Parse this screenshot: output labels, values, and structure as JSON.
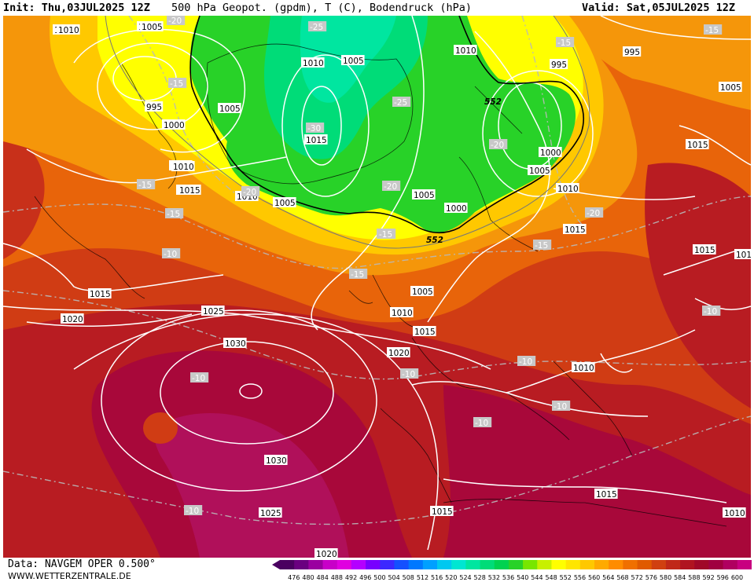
{
  "header": {
    "init_text": "Init: Thu,03JUL2025 12Z",
    "title_text": "500 hPa Geopot. (gpdm), T (C), Bodendruck (hPa)",
    "valid_text": "Valid: Sat,05JUL2025 12Z"
  },
  "footer": {
    "data_text": "Data: NAVGEM OPER 0.500°",
    "site_text": "WWW.WETTERZENTRALE.DE"
  },
  "colorbar": {
    "ticks": [
      "476",
      "480",
      "484",
      "488",
      "492",
      "496",
      "500",
      "504",
      "508",
      "512",
      "516",
      "520",
      "524",
      "528",
      "532",
      "536",
      "540",
      "544",
      "548",
      "552",
      "556",
      "560",
      "564",
      "568",
      "572",
      "576",
      "580",
      "584",
      "588",
      "592",
      "596",
      "600"
    ],
    "colors": [
      "#4a0060",
      "#6a0080",
      "#9a00a0",
      "#c800c8",
      "#e000e0",
      "#b400ff",
      "#7800ff",
      "#3c28ff",
      "#1450ff",
      "#0078ff",
      "#00a0ff",
      "#00c8f0",
      "#00e6d2",
      "#00e6a0",
      "#00dc78",
      "#00d250",
      "#28d228",
      "#78e600",
      "#c8f000",
      "#ffff00",
      "#ffe600",
      "#ffc800",
      "#ffaa00",
      "#ff8c00",
      "#f07000",
      "#e05a00",
      "#d04010",
      "#c02818",
      "#b01420",
      "#a00828",
      "#a00040",
      "#b00060",
      "#c80080"
    ]
  },
  "isobar_labels": [
    {
      "text": "1010"
    },
    {
      "text": "1005"
    },
    {
      "text": "995"
    },
    {
      "text": "1000"
    },
    {
      "text": "1005"
    },
    {
      "text": "1010"
    },
    {
      "text": "1015"
    },
    {
      "text": "1010"
    },
    {
      "text": "1005"
    },
    {
      "text": "1015"
    },
    {
      "text": "1005"
    },
    {
      "text": "1010"
    },
    {
      "text": "1005"
    },
    {
      "text": "1000"
    },
    {
      "text": "1010"
    },
    {
      "text": "1005"
    },
    {
      "text": "995"
    },
    {
      "text": "1000"
    },
    {
      "text": "1010"
    },
    {
      "text": "1015"
    },
    {
      "text": "1005"
    },
    {
      "text": "1010"
    },
    {
      "text": "1015"
    },
    {
      "text": "1010"
    },
    {
      "text": "1015"
    },
    {
      "text": "1005"
    },
    {
      "text": "1010"
    },
    {
      "text": "1015"
    },
    {
      "text": "1020"
    },
    {
      "text": "1020"
    },
    {
      "text": "1025"
    },
    {
      "text": "1030"
    },
    {
      "text": "1030"
    },
    {
      "text": "1025"
    },
    {
      "text": "1020"
    },
    {
      "text": "1015"
    },
    {
      "text": "1015"
    },
    {
      "text": "1015"
    },
    {
      "text": "1010"
    },
    {
      "text": "1010"
    },
    {
      "text": "1015"
    },
    {
      "text": "995"
    },
    {
      "text": "1005"
    },
    {
      "text": "1010"
    }
  ],
  "temp_labels": [
    {
      "text": "-20"
    },
    {
      "text": "-25"
    },
    {
      "text": "-15"
    },
    {
      "text": "-15"
    },
    {
      "text": "-25"
    },
    {
      "text": "-30"
    },
    {
      "text": "-20"
    },
    {
      "text": "-20"
    },
    {
      "text": "-20"
    },
    {
      "text": "-15"
    },
    {
      "text": "-15"
    },
    {
      "text": "-15"
    },
    {
      "text": "-10"
    },
    {
      "text": "-15"
    },
    {
      "text": "-20"
    },
    {
      "text": "-15"
    },
    {
      "text": "-10"
    },
    {
      "text": "-10"
    },
    {
      "text": "-10"
    },
    {
      "text": "-10"
    },
    {
      "text": "-10"
    },
    {
      "text": "-10"
    },
    {
      "text": "-10"
    },
    {
      "text": "-15"
    },
    {
      "text": "-20"
    },
    {
      "text": "-15"
    },
    {
      "text": "-10"
    }
  ],
  "geopot_labels": [
    {
      "text": "552"
    },
    {
      "text": "552"
    }
  ]
}
